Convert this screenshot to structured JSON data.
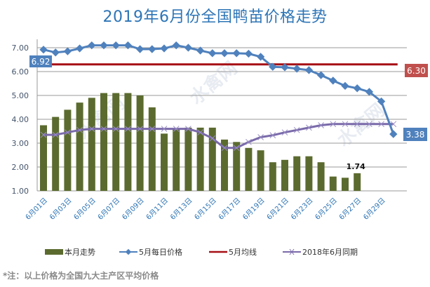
{
  "chart_data": {
    "type": "bar+line",
    "title": "2019年6月份全国鸭苗价格走势",
    "xlabel": "",
    "ylabel": "",
    "ylim": [
      1.0,
      7.0
    ],
    "yticks": [
      "1.00",
      "2.00",
      "3.00",
      "4.00",
      "5.00",
      "6.00",
      "7.00"
    ],
    "grid": true,
    "legend_position": "bottom",
    "x_tick_labels": [
      "6月01日",
      "6月03日",
      "6月05日",
      "6月07日",
      "6月09日",
      "6月11日",
      "6月13日",
      "6月15日",
      "6月17日",
      "6月19日",
      "6月21日",
      "6月23日",
      "6月25日",
      "6月27日",
      "6月29日"
    ],
    "days": [
      1,
      2,
      3,
      4,
      5,
      6,
      7,
      8,
      9,
      10,
      11,
      12,
      13,
      14,
      15,
      16,
      17,
      18,
      19,
      20,
      21,
      22,
      23,
      24,
      25,
      26,
      27,
      28,
      29,
      30
    ],
    "series": [
      {
        "name": "本月走势",
        "kind": "bar",
        "color": "#5b6b2f",
        "values": [
          3.75,
          4.1,
          4.4,
          4.7,
          4.9,
          5.1,
          5.1,
          5.1,
          5.0,
          4.5,
          3.4,
          3.6,
          3.65,
          3.65,
          3.65,
          3.15,
          3.05,
          2.8,
          2.7,
          2.2,
          2.3,
          2.45,
          2.45,
          2.2,
          1.6,
          1.55,
          1.74
        ]
      },
      {
        "name": "5月每日价格",
        "kind": "line-diamond",
        "color": "#4f81bd",
        "values": [
          6.92,
          6.8,
          6.85,
          6.97,
          7.1,
          7.1,
          7.1,
          7.1,
          6.94,
          6.94,
          6.97,
          7.1,
          7.0,
          6.88,
          6.77,
          6.77,
          6.77,
          6.75,
          6.62,
          6.2,
          6.18,
          6.12,
          6.06,
          5.85,
          5.62,
          5.4,
          5.3,
          5.15,
          4.75,
          3.38
        ]
      },
      {
        "name": "5月均线",
        "kind": "line",
        "color": "#a50f15",
        "values": [
          6.3,
          6.3,
          6.3,
          6.3,
          6.3,
          6.3,
          6.3,
          6.3,
          6.3,
          6.3,
          6.3,
          6.3,
          6.3,
          6.3,
          6.3,
          6.3,
          6.3,
          6.3,
          6.3,
          6.3,
          6.3,
          6.3,
          6.3,
          6.3,
          6.3,
          6.3,
          6.3,
          6.3,
          6.3,
          6.3
        ]
      },
      {
        "name": "2018年6月同期",
        "kind": "line-x",
        "color": "#7a6aaa",
        "values": [
          3.35,
          3.35,
          3.45,
          3.55,
          3.6,
          3.6,
          3.6,
          3.6,
          3.6,
          3.6,
          3.6,
          3.6,
          3.6,
          3.45,
          3.2,
          2.8,
          2.8,
          3.05,
          3.25,
          3.33,
          3.45,
          3.55,
          3.65,
          3.75,
          3.8,
          3.8,
          3.8,
          3.8,
          3.8,
          3.8
        ]
      }
    ],
    "annotations": [
      {
        "text": "6.92",
        "series": "5月每日价格",
        "day": 1,
        "box_color": "#4f81bd"
      },
      {
        "text": "6.30",
        "series": "5月均线",
        "day": 30,
        "box_color": "#c0504d"
      },
      {
        "text": "3.38",
        "series": "5月每日价格",
        "day": 30,
        "box_color": "#4f81bd"
      },
      {
        "text": "1.74",
        "series": "本月走势",
        "day": 27,
        "box_color": ""
      }
    ],
    "footnote": "*注：以上价格为全国九大主产区平均价格",
    "watermark": "水禽网"
  }
}
